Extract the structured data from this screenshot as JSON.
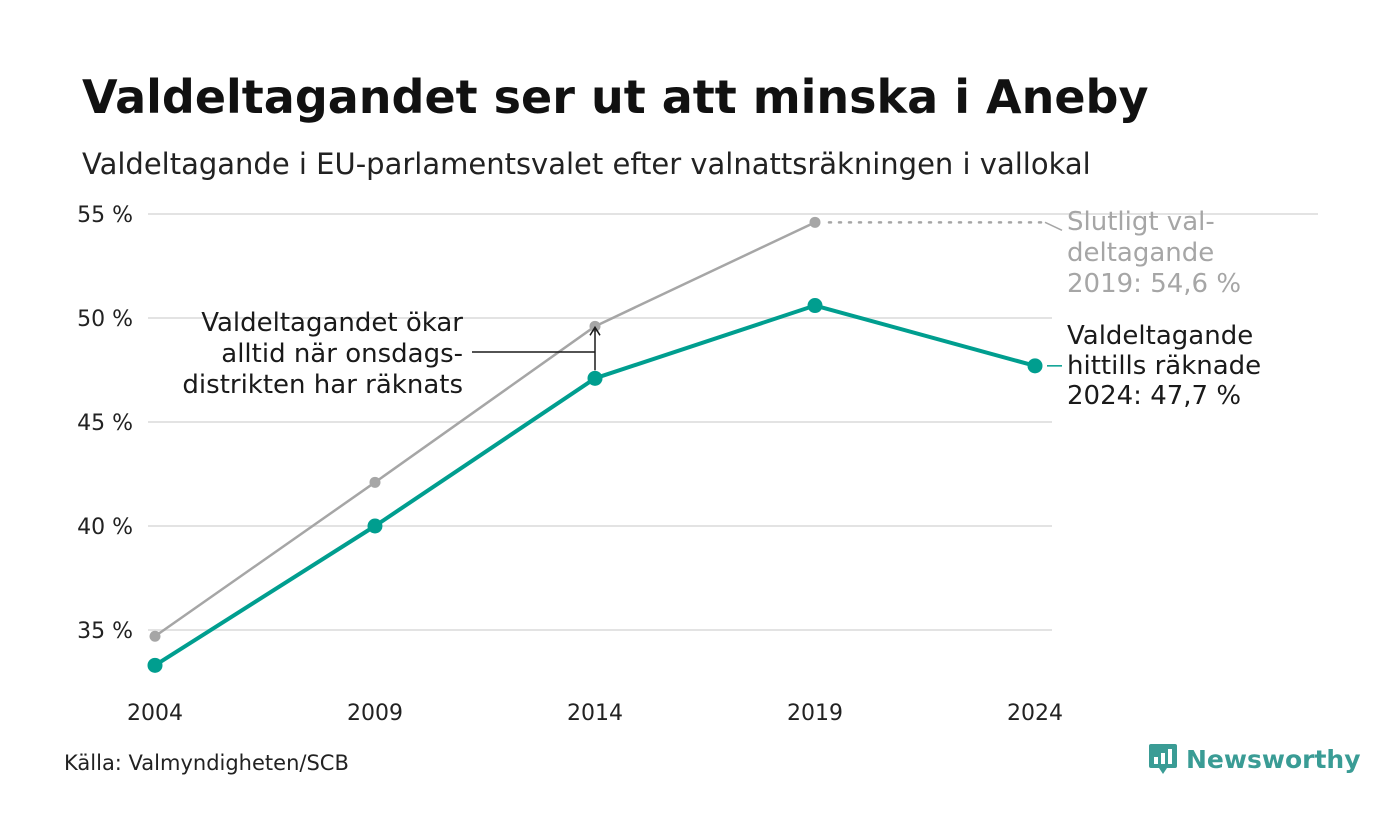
{
  "header": {
    "title": "Valdeltagandet ser ut att minska i Aneby",
    "subtitle": "Valdeltagande i EU-parlamentsvalet efter valnattsräkningen i vallokal"
  },
  "footer": {
    "source": "Källa: Valmyndigheten/SCB",
    "brand": "Newsworthy"
  },
  "colors": {
    "counted": "#009e8f",
    "final": "#a6a6a6",
    "grid": "#e3e3e3",
    "text": "#1a1a1a"
  },
  "chart_data": {
    "type": "line",
    "title": "Valdeltagandet ser ut att minska i Aneby",
    "subtitle": "Valdeltagande i EU-parlamentsvalet efter valnattsräkningen i vallokal",
    "x": [
      2004,
      2009,
      2014,
      2019,
      2024
    ],
    "ylim": [
      33,
      55
    ],
    "yticks": [
      35,
      40,
      45,
      50,
      55
    ],
    "ytick_labels": [
      "35 %",
      "40 %",
      "45 %",
      "50 %",
      "55 %"
    ],
    "xtick_labels": [
      "2004",
      "2009",
      "2014",
      "2019",
      "2024"
    ],
    "grid": true,
    "series": [
      {
        "key": "final",
        "values": [
          34.7,
          42.1,
          49.6,
          54.6,
          null
        ]
      },
      {
        "key": "counted",
        "values": [
          33.3,
          40.0,
          47.1,
          50.6,
          47.7
        ]
      }
    ],
    "annotations": {
      "final": [
        "Slutligt val-",
        "deltagande",
        "2019: 54,6 %"
      ],
      "counted": [
        "Valdeltagande",
        "hittills räknade",
        "2024: 47,7 %"
      ],
      "wednesday": [
        "Valdeltagandet ökar",
        "alltid när onsdags-",
        "distrikten har räknats"
      ]
    }
  }
}
